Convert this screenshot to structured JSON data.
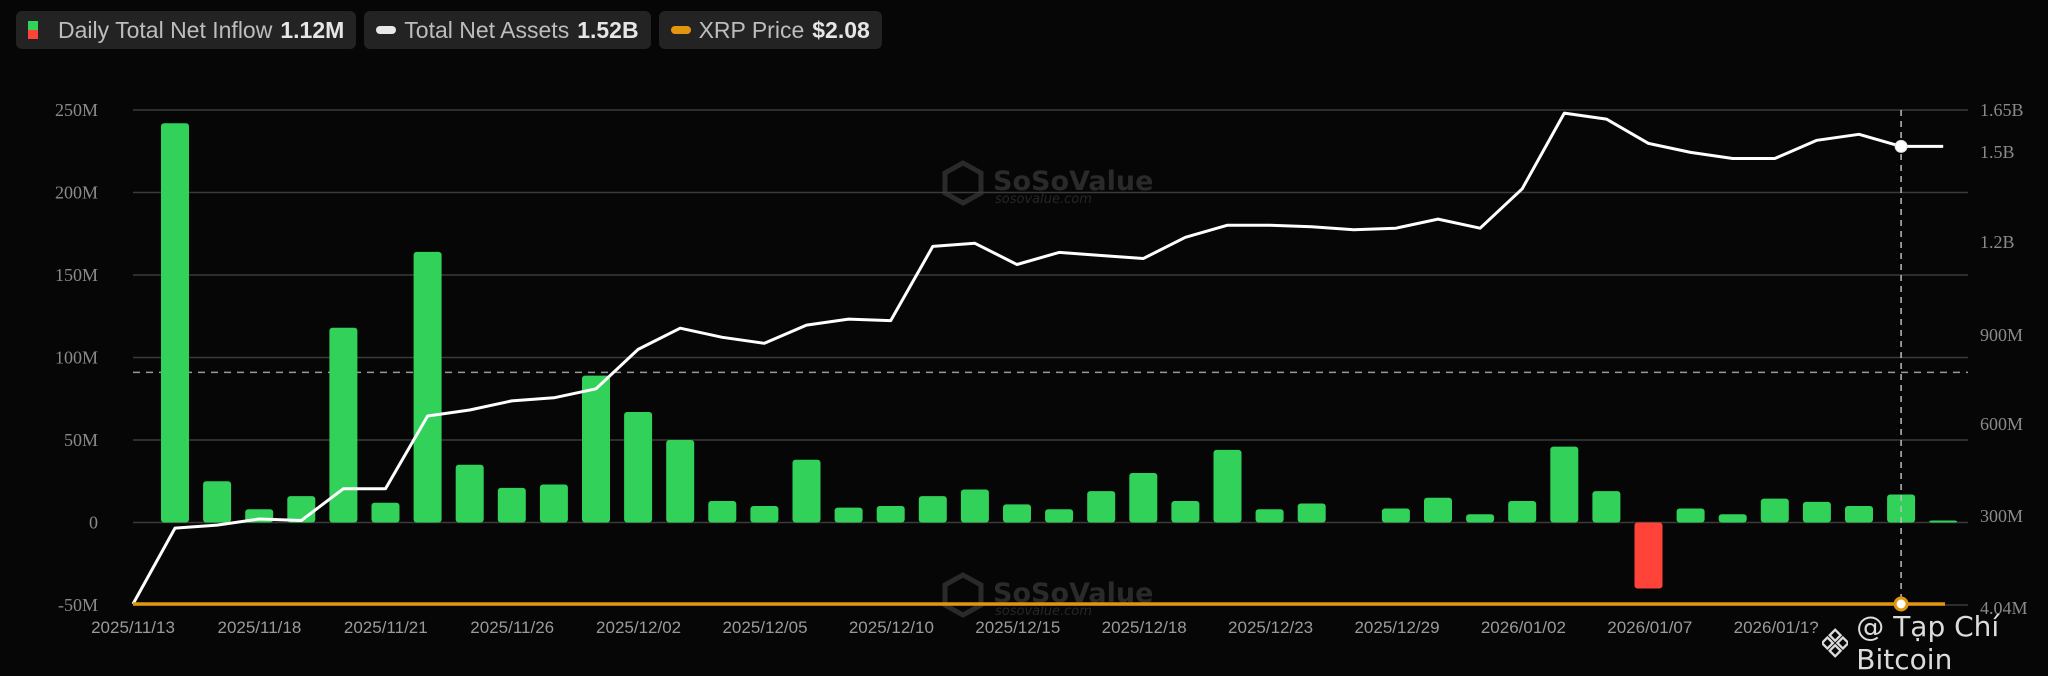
{
  "legend": {
    "items": [
      {
        "label": "Daily Total Net Inflow",
        "value": "1.12M",
        "icon": "green-red-swatch"
      },
      {
        "label": "Total Net Assets",
        "value": "1.52B",
        "icon": "white-pill"
      },
      {
        "label": "XRP Price",
        "value": "$2.08",
        "icon": "orange-pill"
      }
    ]
  },
  "colors": {
    "inflow_positive": "#32d15a",
    "inflow_negative": "#ff4338",
    "net_assets": "#ffffff",
    "price": "#e2960e",
    "background": "#060606",
    "grid": "#3a3a3a"
  },
  "watermark": {
    "brand": "SoSoValue",
    "url": "sosovalue.com"
  },
  "credit": {
    "text": "@ Tạp Chí Bitcoin"
  },
  "chart_data": {
    "type": "bar",
    "title": "",
    "legend_position": "top-left",
    "grid": true,
    "left_axis": {
      "ticks": [
        "250M",
        "200M",
        "150M",
        "100M",
        "50M",
        "0",
        "-50M"
      ],
      "ylim": [
        -50,
        250
      ],
      "unit": "M"
    },
    "right_axis": {
      "ticks": [
        "1.65B",
        "1.5B",
        "1.2B",
        "900M",
        "600M",
        "300M",
        "4.04M"
      ]
    },
    "x_tick_labels": [
      "2025/11/13",
      "2025/11/18",
      "2025/11/21",
      "2025/11/26",
      "2025/12/02",
      "2025/12/05",
      "2025/12/10",
      "2025/12/15",
      "2025/12/18",
      "2025/12/23",
      "2025/12/29",
      "2026/01/02",
      "2026/01/07",
      "2026/01/1?"
    ],
    "reference_line_left": 91,
    "hover_index": 41,
    "series": [
      {
        "name": "Daily Total Net Inflow",
        "type": "bar",
        "unit": "M USD",
        "values": [
          242,
          25,
          8,
          16,
          118,
          12,
          164,
          35,
          21,
          23,
          89,
          67,
          50,
          13,
          10,
          38,
          9,
          10,
          16,
          20,
          11,
          8,
          19,
          30,
          13,
          44,
          8,
          11.5,
          null,
          8.5,
          15,
          5,
          13,
          46,
          19,
          -40,
          8.5,
          5,
          14.5,
          12.5,
          10,
          17,
          1.12
        ]
      },
      {
        "name": "Total Net Assets",
        "type": "line",
        "unit": "M USD",
        "values": [
          4,
          260,
          270,
          290,
          285,
          390,
          390,
          630,
          650,
          680,
          690,
          720,
          850,
          920,
          890,
          870,
          930,
          950,
          945,
          1190,
          1200,
          1130,
          1170,
          1160,
          1150,
          1220,
          1260,
          1260,
          1255,
          1245,
          1250,
          1280,
          1250,
          1380,
          1630,
          1610,
          1530,
          1500,
          1480,
          1480,
          1540,
          1560,
          1520,
          1520
        ]
      },
      {
        "name": "XRP Price",
        "type": "line",
        "note": "plotted flat along bottom axis",
        "current": "$2.08"
      }
    ]
  }
}
